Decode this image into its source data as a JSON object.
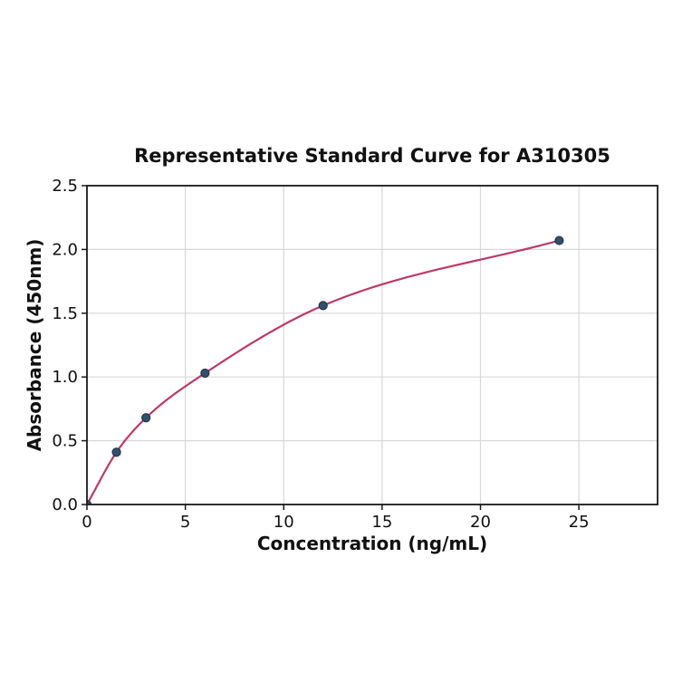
{
  "chart_data": {
    "type": "scatter",
    "title": "Representative Standard Curve for A310305",
    "xlabel": "Concentration (ng/mL)",
    "ylabel": "Absorbance (450nm)",
    "x": [
      0,
      1.5,
      3,
      6,
      12,
      24
    ],
    "y": [
      0,
      0.41,
      0.68,
      1.03,
      1.56,
      2.07
    ],
    "fit_line": "smooth saturating curve through all points, from (0,0) to (24,2.07)",
    "xlim": [
      0,
      29.0
    ],
    "ylim": [
      0,
      2.5
    ],
    "x_ticks": [
      0,
      5,
      10,
      15,
      20,
      25
    ],
    "y_ticks": [
      0,
      0.5,
      1,
      1.5,
      2,
      2.5
    ],
    "y_tick_decimals": 1,
    "grid": true,
    "legend_position": "none",
    "colors": {
      "fit_line": "#bd3a67",
      "marker_fill": "#31506e",
      "marker_edge": "#22354e",
      "gridline": "#d8d8d8",
      "spine": "#1a1a1a",
      "text": "#111111",
      "background": "#ffffff"
    }
  }
}
